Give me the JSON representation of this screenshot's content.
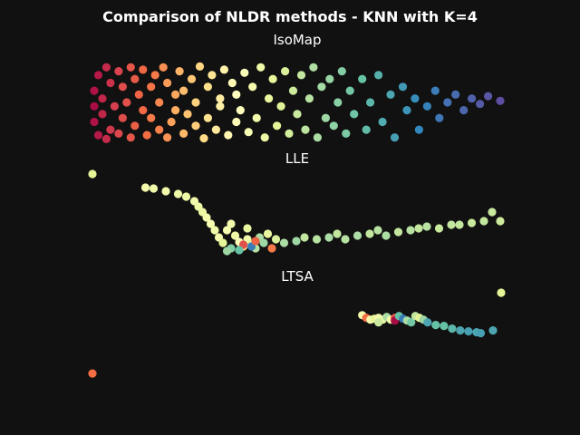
{
  "figure": {
    "title": "Comparison of NLDR methods - KNN with K=4",
    "background": "#111111"
  },
  "colormap": {
    "name": "Spectral",
    "stops": [
      "#9e0142",
      "#d53e4f",
      "#f46d43",
      "#fdae61",
      "#fee08b",
      "#ffffbf",
      "#e6f598",
      "#abdda4",
      "#66c2a5",
      "#3288bd",
      "#5e4fa2"
    ]
  },
  "chart_data": [
    {
      "type": "scatter",
      "title": "IsoMap",
      "axis_visible": false,
      "grid": false,
      "legend": "none",
      "description_of_points": "Unrolled swiss-roll band; colour value runs from 0 at the left end to 1 at the right end",
      "points": [
        [
          0.0,
          0.55,
          0.02
        ],
        [
          0.0,
          0.35,
          0.03
        ],
        [
          0.0,
          0.75,
          0.03
        ],
        [
          0.01,
          0.15,
          0.04
        ],
        [
          0.01,
          0.92,
          0.04
        ],
        [
          0.02,
          0.45,
          0.06
        ],
        [
          0.02,
          0.65,
          0.06
        ],
        [
          0.03,
          0.05,
          0.07
        ],
        [
          0.03,
          0.97,
          0.07
        ],
        [
          0.04,
          0.25,
          0.08
        ],
        [
          0.04,
          0.85,
          0.09
        ],
        [
          0.05,
          0.55,
          0.1
        ],
        [
          0.06,
          0.1,
          0.11
        ],
        [
          0.06,
          0.9,
          0.12
        ],
        [
          0.07,
          0.3,
          0.13
        ],
        [
          0.07,
          0.7,
          0.13
        ],
        [
          0.08,
          0.5,
          0.14
        ],
        [
          0.09,
          0.05,
          0.15
        ],
        [
          0.09,
          0.95,
          0.15
        ],
        [
          0.1,
          0.2,
          0.16
        ],
        [
          0.1,
          0.8,
          0.17
        ],
        [
          0.11,
          0.4,
          0.18
        ],
        [
          0.12,
          0.6,
          0.19
        ],
        [
          0.12,
          0.08,
          0.19
        ],
        [
          0.13,
          0.92,
          0.2
        ],
        [
          0.14,
          0.3,
          0.21
        ],
        [
          0.14,
          0.7,
          0.22
        ],
        [
          0.15,
          0.15,
          0.22
        ],
        [
          0.16,
          0.85,
          0.23
        ],
        [
          0.16,
          0.5,
          0.24
        ],
        [
          0.17,
          0.05,
          0.25
        ],
        [
          0.18,
          0.95,
          0.26
        ],
        [
          0.18,
          0.25,
          0.27
        ],
        [
          0.19,
          0.75,
          0.28
        ],
        [
          0.2,
          0.4,
          0.29
        ],
        [
          0.2,
          0.6,
          0.3
        ],
        [
          0.21,
          0.1,
          0.31
        ],
        [
          0.22,
          0.9,
          0.32
        ],
        [
          0.22,
          0.35,
          0.33
        ],
        [
          0.23,
          0.65,
          0.34
        ],
        [
          0.24,
          0.2,
          0.35
        ],
        [
          0.25,
          0.8,
          0.36
        ],
        [
          0.25,
          0.5,
          0.37
        ],
        [
          0.26,
          0.04,
          0.38
        ],
        [
          0.27,
          0.96,
          0.39
        ],
        [
          0.28,
          0.3,
          0.4
        ],
        [
          0.28,
          0.7,
          0.41
        ],
        [
          0.29,
          0.15,
          0.42
        ],
        [
          0.3,
          0.85,
          0.43
        ],
        [
          0.31,
          0.45,
          0.44
        ],
        [
          0.31,
          0.55,
          0.45
        ],
        [
          0.32,
          0.08,
          0.46
        ],
        [
          0.33,
          0.92,
          0.47
        ],
        [
          0.34,
          0.25,
          0.48
        ],
        [
          0.35,
          0.75,
          0.49
        ],
        [
          0.35,
          0.4,
          0.5
        ],
        [
          0.36,
          0.6,
          0.51
        ],
        [
          0.37,
          0.12,
          0.52
        ],
        [
          0.38,
          0.88,
          0.53
        ],
        [
          0.39,
          0.3,
          0.54
        ],
        [
          0.4,
          0.7,
          0.55
        ],
        [
          0.41,
          0.05,
          0.56
        ],
        [
          0.42,
          0.95,
          0.57
        ],
        [
          0.43,
          0.45,
          0.58
        ],
        [
          0.44,
          0.2,
          0.59
        ],
        [
          0.45,
          0.8,
          0.6
        ],
        [
          0.46,
          0.55,
          0.61
        ],
        [
          0.47,
          0.1,
          0.62
        ],
        [
          0.48,
          0.9,
          0.63
        ],
        [
          0.49,
          0.35,
          0.64
        ],
        [
          0.5,
          0.65,
          0.65
        ],
        [
          0.51,
          0.15,
          0.66
        ],
        [
          0.52,
          0.85,
          0.67
        ],
        [
          0.53,
          0.45,
          0.68
        ],
        [
          0.54,
          0.05,
          0.69
        ],
        [
          0.55,
          0.95,
          0.7
        ],
        [
          0.56,
          0.3,
          0.71
        ],
        [
          0.57,
          0.7,
          0.72
        ],
        [
          0.58,
          0.2,
          0.73
        ],
        [
          0.59,
          0.8,
          0.74
        ],
        [
          0.6,
          0.5,
          0.75
        ],
        [
          0.61,
          0.1,
          0.76
        ],
        [
          0.62,
          0.9,
          0.77
        ],
        [
          0.63,
          0.35,
          0.78
        ],
        [
          0.64,
          0.65,
          0.79
        ],
        [
          0.66,
          0.2,
          0.8
        ],
        [
          0.67,
          0.85,
          0.81
        ],
        [
          0.68,
          0.5,
          0.82
        ],
        [
          0.7,
          0.15,
          0.83
        ],
        [
          0.71,
          0.75,
          0.84
        ],
        [
          0.73,
          0.4,
          0.85
        ],
        [
          0.74,
          0.95,
          0.86
        ],
        [
          0.76,
          0.3,
          0.87
        ],
        [
          0.77,
          0.6,
          0.88
        ],
        [
          0.79,
          0.45,
          0.89
        ],
        [
          0.8,
          0.85,
          0.9
        ],
        [
          0.82,
          0.55,
          0.91
        ],
        [
          0.84,
          0.35,
          0.92
        ],
        [
          0.85,
          0.7,
          0.93
        ],
        [
          0.87,
          0.5,
          0.94
        ],
        [
          0.89,
          0.4,
          0.95
        ],
        [
          0.91,
          0.6,
          0.96
        ],
        [
          0.93,
          0.45,
          0.97
        ],
        [
          0.95,
          0.52,
          0.98
        ],
        [
          0.97,
          0.42,
          0.99
        ],
        [
          1.0,
          0.48,
          1.0
        ]
      ]
    },
    {
      "type": "scatter",
      "title": "LLE",
      "axis_visible": false,
      "grid": false,
      "legend": "none",
      "points": [
        [
          0.0,
          0.0,
          0.6
        ],
        [
          0.13,
          0.15,
          0.55
        ],
        [
          0.15,
          0.16,
          0.56
        ],
        [
          0.18,
          0.19,
          0.55
        ],
        [
          0.21,
          0.22,
          0.56
        ],
        [
          0.23,
          0.25,
          0.57
        ],
        [
          0.25,
          0.3,
          0.55
        ],
        [
          0.26,
          0.36,
          0.56
        ],
        [
          0.27,
          0.42,
          0.57
        ],
        [
          0.28,
          0.48,
          0.55
        ],
        [
          0.29,
          0.55,
          0.54
        ],
        [
          0.3,
          0.62,
          0.56
        ],
        [
          0.31,
          0.7,
          0.55
        ],
        [
          0.32,
          0.76,
          0.6
        ],
        [
          0.33,
          0.62,
          0.54
        ],
        [
          0.34,
          0.55,
          0.55
        ],
        [
          0.35,
          0.68,
          0.57
        ],
        [
          0.36,
          0.75,
          0.52
        ],
        [
          0.37,
          0.8,
          0.4
        ],
        [
          0.38,
          0.72,
          0.55
        ],
        [
          0.38,
          0.6,
          0.58
        ],
        [
          0.39,
          0.78,
          0.62
        ],
        [
          0.4,
          0.82,
          0.68
        ],
        [
          0.41,
          0.7,
          0.7
        ],
        [
          0.42,
          0.76,
          0.72
        ],
        [
          0.43,
          0.66,
          0.58
        ],
        [
          0.45,
          0.72,
          0.62
        ],
        [
          0.47,
          0.76,
          0.7
        ],
        [
          0.5,
          0.74,
          0.72
        ],
        [
          0.52,
          0.7,
          0.66
        ],
        [
          0.55,
          0.72,
          0.68
        ],
        [
          0.58,
          0.7,
          0.7
        ],
        [
          0.6,
          0.66,
          0.66
        ],
        [
          0.62,
          0.72,
          0.68
        ],
        [
          0.65,
          0.68,
          0.7
        ],
        [
          0.68,
          0.66,
          0.66
        ],
        [
          0.7,
          0.62,
          0.68
        ],
        [
          0.72,
          0.68,
          0.7
        ],
        [
          0.75,
          0.64,
          0.66
        ],
        [
          0.78,
          0.62,
          0.68
        ],
        [
          0.8,
          0.6,
          0.66
        ],
        [
          0.82,
          0.58,
          0.68
        ],
        [
          0.85,
          0.6,
          0.65
        ],
        [
          0.88,
          0.56,
          0.66
        ],
        [
          0.9,
          0.56,
          0.66
        ],
        [
          0.93,
          0.54,
          0.65
        ],
        [
          0.96,
          0.52,
          0.66
        ],
        [
          0.98,
          0.42,
          0.65
        ],
        [
          1.0,
          0.52,
          0.64
        ],
        [
          0.34,
          0.82,
          0.76
        ],
        [
          0.33,
          0.85,
          0.72
        ],
        [
          0.37,
          0.78,
          0.14
        ],
        [
          0.39,
          0.8,
          0.92
        ],
        [
          0.36,
          0.84,
          0.8
        ],
        [
          0.4,
          0.74,
          0.18
        ],
        [
          0.44,
          0.82,
          0.22
        ]
      ]
    },
    {
      "type": "scatter",
      "title": "LTSA",
      "axis_visible": false,
      "grid": false,
      "legend": "none",
      "points": [
        [
          0.0,
          0.9,
          0.2
        ],
        [
          0.66,
          0.25,
          0.55
        ],
        [
          0.67,
          0.28,
          0.2
        ],
        [
          0.68,
          0.3,
          0.55
        ],
        [
          0.69,
          0.29,
          0.6
        ],
        [
          0.7,
          0.28,
          0.55
        ],
        [
          0.71,
          0.3,
          0.58
        ],
        [
          0.72,
          0.27,
          0.7
        ],
        [
          0.73,
          0.3,
          0.55
        ],
        [
          0.74,
          0.28,
          0.15
        ],
        [
          0.74,
          0.31,
          0.02
        ],
        [
          0.75,
          0.26,
          0.8
        ],
        [
          0.76,
          0.29,
          0.92
        ],
        [
          0.77,
          0.31,
          0.7
        ],
        [
          0.78,
          0.33,
          0.78
        ],
        [
          0.79,
          0.26,
          0.66
        ],
        [
          0.8,
          0.28,
          0.6
        ],
        [
          0.81,
          0.3,
          0.72
        ],
        [
          0.82,
          0.33,
          0.85
        ],
        [
          0.84,
          0.36,
          0.8
        ],
        [
          0.86,
          0.37,
          0.8
        ],
        [
          0.88,
          0.4,
          0.82
        ],
        [
          0.9,
          0.42,
          0.85
        ],
        [
          0.92,
          0.43,
          0.86
        ],
        [
          0.94,
          0.44,
          0.85
        ],
        [
          0.98,
          0.42,
          0.85
        ],
        [
          0.95,
          0.45,
          0.86
        ],
        [
          1.0,
          0.0,
          0.6
        ],
        [
          0.7,
          0.33,
          0.65
        ]
      ]
    }
  ]
}
